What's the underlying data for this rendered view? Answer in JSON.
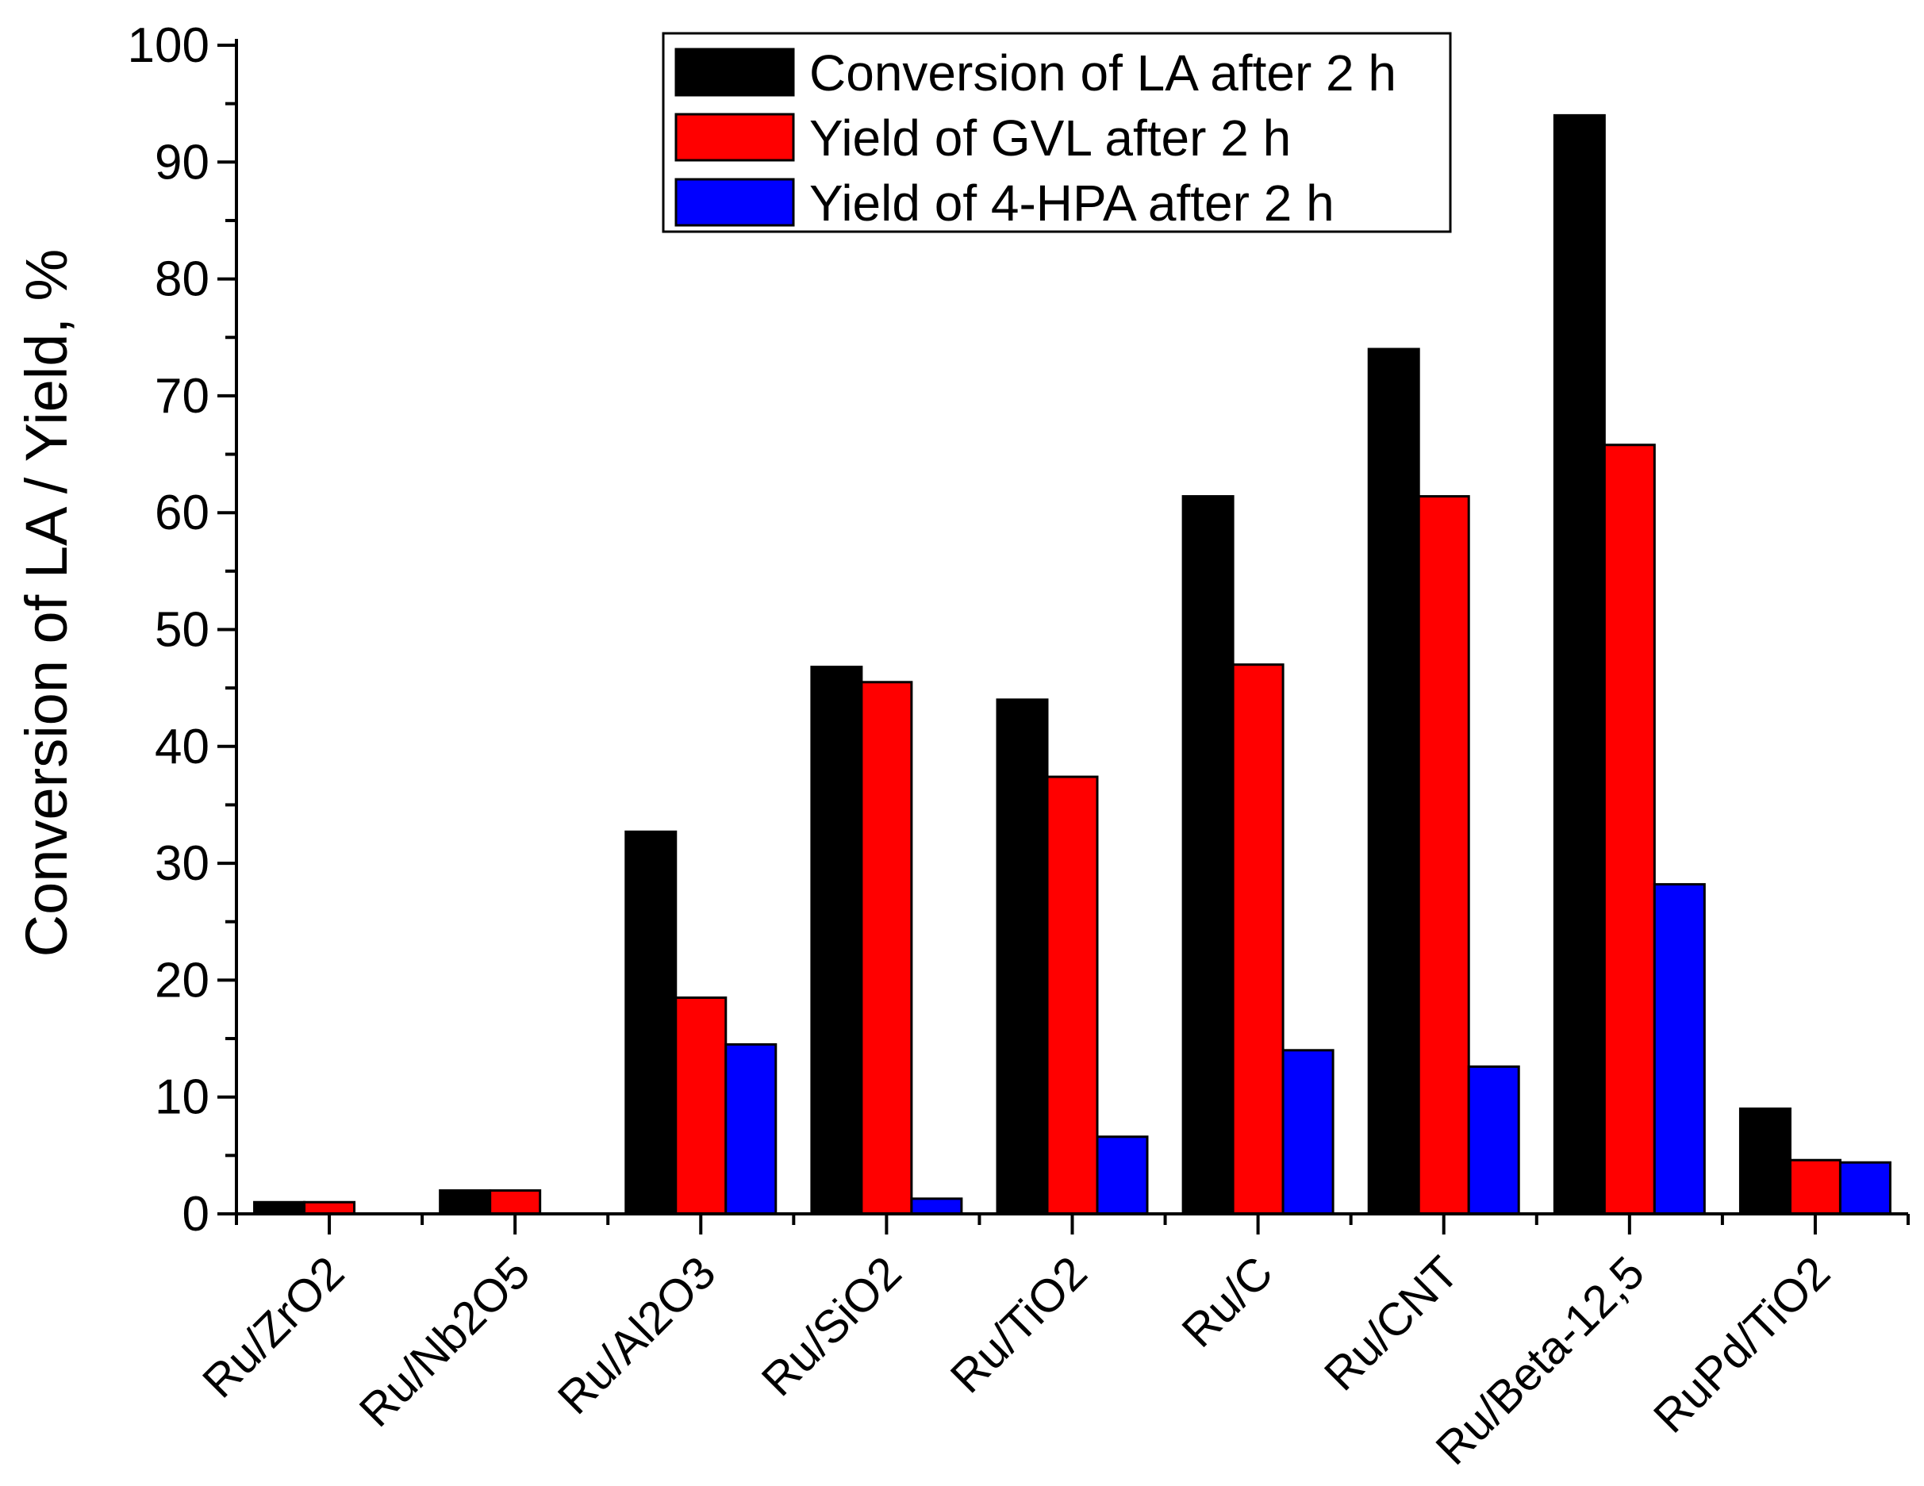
{
  "chart_data": {
    "type": "bar",
    "title": "",
    "xlabel": "",
    "ylabel": "Conversion of LA / Yield, %",
    "ylim": [
      0,
      100
    ],
    "yticks": [
      "0",
      "10",
      "20",
      "30",
      "40",
      "50",
      "60",
      "70",
      "80",
      "90",
      "100"
    ],
    "categories": [
      "Ru/ZrO2",
      "Ru/Nb2O5",
      "Ru/Al2O3",
      "Ru/SiO2",
      "Ru/TiO2",
      "Ru/C",
      "Ru/CNT",
      "Ru/Beta-12,5",
      "RuPd/TiO2"
    ],
    "series": [
      {
        "name": "Conversion of LA after 2 h",
        "color": "#000000",
        "values": [
          1,
          2,
          32.7,
          46.8,
          44,
          61.4,
          74,
          94,
          9
        ]
      },
      {
        "name": "Yield of GVL after 2 h",
        "color": "#ff0000",
        "values": [
          1,
          2,
          18.5,
          45.5,
          37.4,
          47,
          61.4,
          65.8,
          4.6
        ]
      },
      {
        "name": "Yield of 4-HPA after 2 h",
        "color": "#0000ff",
        "values": [
          0,
          0,
          14.5,
          1.3,
          6.6,
          14,
          12.6,
          28.2,
          4.4
        ]
      }
    ],
    "legend_position": "top-center"
  }
}
